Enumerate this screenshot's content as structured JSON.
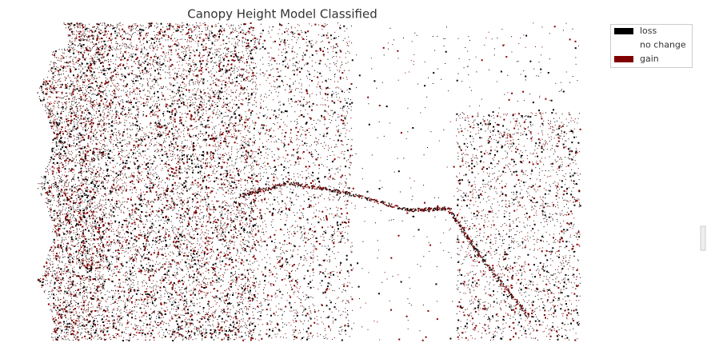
{
  "title": "Canopy Height Model Classified",
  "legend": [
    {
      "label": "loss",
      "color": "#000000"
    },
    {
      "label": "no change",
      "color": "#ffffff"
    },
    {
      "label": "gain",
      "color": "#800000"
    }
  ]
}
